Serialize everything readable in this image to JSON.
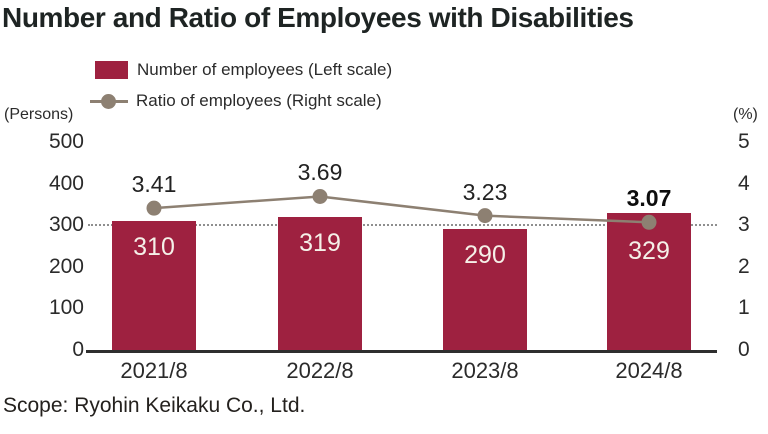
{
  "title": "Number and Ratio of Employees with Disabilities",
  "legend": {
    "items": [
      {
        "label": "Number of employees (Left scale)",
        "icon": "bar-swatch"
      },
      {
        "label": "Ratio of employees (Right scale)",
        "icon": "line-marker"
      }
    ]
  },
  "scope_note": "Scope: Ryohin Keikaku Co., Ltd.",
  "colors": {
    "bar": "#9E2140",
    "line": "#8D8072",
    "marker": "#8D8072",
    "title_text": "#1E2423",
    "axis_text": "#2B2B2B",
    "bar_value_text": "#F5F0E8",
    "reference_line": "#8F8F8F",
    "axis_line": "#2E2E2E",
    "ratio_label_text": "#222222",
    "emphasis_text": "#0D0D0D"
  },
  "chart_data": {
    "type": "bar+line combo",
    "categories": [
      "2021/8",
      "2022/8",
      "2023/8",
      "2024/8"
    ],
    "series": [
      {
        "name": "Number of employees (Left scale)",
        "type": "bar",
        "axis": "left",
        "values": [
          310,
          319,
          290,
          329
        ]
      },
      {
        "name": "Ratio of employees (Right scale)",
        "type": "line",
        "axis": "right",
        "values": [
          3.41,
          3.69,
          3.23,
          3.07
        ],
        "value_labels": [
          "3.41",
          "3.69",
          "3.23",
          "3.07"
        ],
        "emphasized_index": 3
      }
    ],
    "left_axis": {
      "unit": "(Persons)",
      "min": 0,
      "max": 500,
      "ticks": [
        500,
        400,
        300,
        200,
        100,
        0
      ]
    },
    "right_axis": {
      "unit": "(%)",
      "min": 0,
      "max": 5,
      "ticks": [
        5,
        4,
        3,
        2,
        1,
        0
      ]
    },
    "reference_line": {
      "axis": "right",
      "value": 3,
      "style": "dotted"
    },
    "grid": false,
    "legend_position": "top-left"
  }
}
